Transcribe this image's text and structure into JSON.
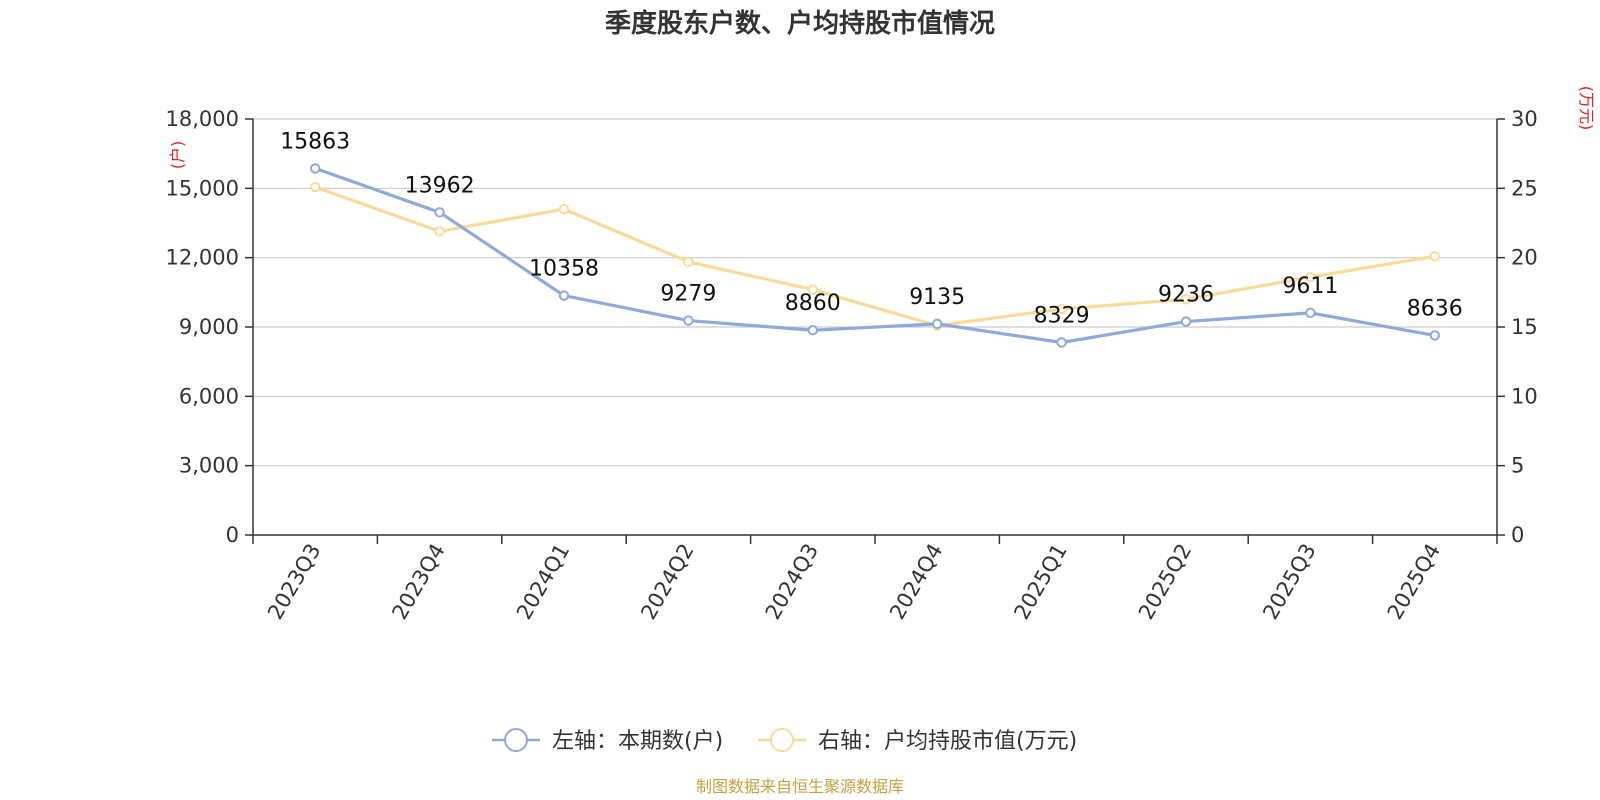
{
  "chart_data": {
    "type": "line",
    "title": "季度股东户数、户均持股市值情况",
    "categories": [
      "2023Q3",
      "2023Q4",
      "2024Q1",
      "2024Q2",
      "2024Q3",
      "2024Q4",
      "2025Q1",
      "2025Q2",
      "2025Q3",
      "2025Q4"
    ],
    "series": [
      {
        "name": "左轴：本期数(户)",
        "axis": "left",
        "color": "#8eaadb",
        "values": [
          15863,
          13962,
          10358,
          9279,
          8860,
          9135,
          8329,
          9236,
          9611,
          8636
        ],
        "data_labels": [
          "15863",
          "13962",
          "10358",
          "9279",
          "8860",
          "9135",
          "8329",
          "9236",
          "9611",
          "8636"
        ]
      },
      {
        "name": "右轴：户均持股市值(万元)",
        "axis": "right",
        "color": "#fcd998",
        "values": [
          25.1,
          21.9,
          23.5,
          19.7,
          17.7,
          15.1,
          16.3,
          17.0,
          18.6,
          20.1
        ]
      }
    ],
    "left_axis": {
      "unit": "(户)",
      "ylim": [
        0,
        18000
      ],
      "ticks": [
        0,
        3000,
        6000,
        9000,
        12000,
        15000,
        18000
      ],
      "tick_labels": [
        "0",
        "3,000",
        "6,000",
        "9,000",
        "12,000",
        "15,000",
        "18,000"
      ]
    },
    "right_axis": {
      "unit": "(万元)",
      "ylim": [
        0,
        30
      ],
      "ticks": [
        0,
        5,
        10,
        15,
        20,
        25,
        30
      ],
      "tick_labels": [
        "0",
        "5",
        "10",
        "15",
        "20",
        "25",
        "30"
      ]
    },
    "grid": true,
    "legend_position": "bottom-center",
    "unit_color": "#e02020"
  },
  "source": {
    "text": "制图数据来自恒生聚源数据库",
    "color": "#c8a040"
  }
}
